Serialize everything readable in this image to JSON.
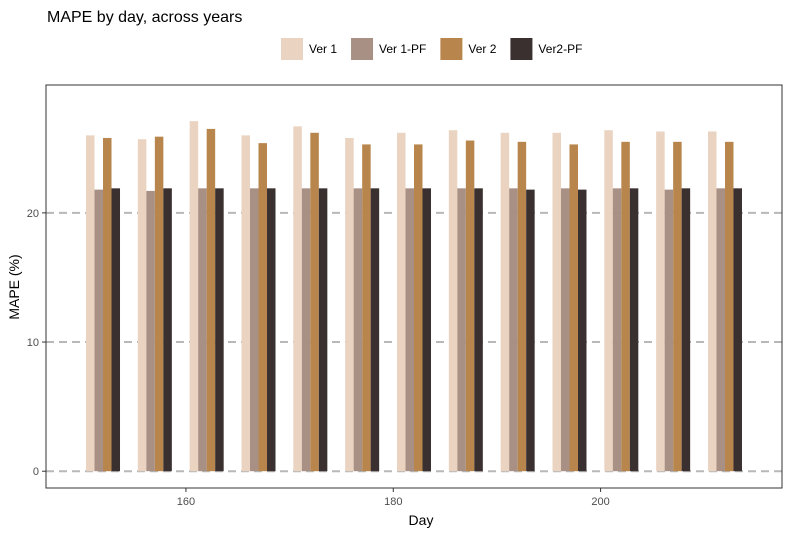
{
  "chart_data": {
    "type": "bar",
    "title": "MAPE by day, across years",
    "xlabel": "Day",
    "ylabel": "MAPE (%)",
    "x": [
      152,
      157,
      162,
      167,
      172,
      177,
      182,
      187,
      192,
      197,
      202,
      207,
      212
    ],
    "xlim": [
      146.5,
      217.5
    ],
    "ylim": [
      -1.3,
      29.9
    ],
    "xticks": [
      160,
      180,
      200
    ],
    "yticks": [
      0,
      10,
      20
    ],
    "grid": "horizontal dashed at y ticks",
    "legend_position": "top",
    "series": [
      {
        "name": "Ver 1",
        "color": "#EAD3C0",
        "values": [
          26.0,
          25.7,
          27.1,
          26.0,
          26.7,
          25.8,
          26.2,
          26.4,
          26.2,
          26.2,
          26.4,
          26.3,
          26.3
        ]
      },
      {
        "name": "Ver 1-PF",
        "color": "#A89085",
        "values": [
          21.8,
          21.7,
          21.9,
          21.9,
          21.9,
          21.9,
          21.9,
          21.9,
          21.9,
          21.9,
          21.9,
          21.8,
          21.9
        ]
      },
      {
        "name": "Ver 2",
        "color": "#B8864D",
        "values": [
          25.8,
          25.9,
          26.5,
          25.4,
          26.2,
          25.3,
          25.3,
          25.6,
          25.5,
          25.3,
          25.5,
          25.5,
          25.5
        ]
      },
      {
        "name": "Ver2-PF",
        "color": "#3A3030",
        "values": [
          21.9,
          21.9,
          21.9,
          21.9,
          21.9,
          21.9,
          21.9,
          21.9,
          21.8,
          21.8,
          21.9,
          21.9,
          21.9
        ]
      }
    ]
  }
}
